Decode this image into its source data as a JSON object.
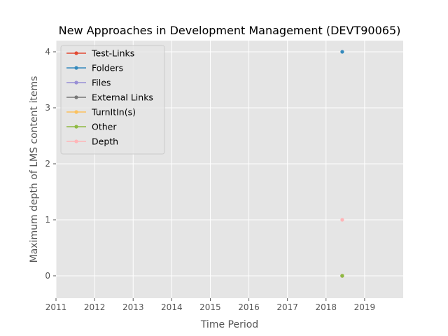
{
  "chart_data": {
    "type": "line",
    "title": "New Approaches in Development Management (DEVT90065)",
    "xlabel": "Time Period",
    "ylabel": "Maximum depth of LMS content items",
    "xlim": [
      2011,
      2020
    ],
    "ylim": [
      -0.4,
      4.2
    ],
    "xticks": [
      2011,
      2012,
      2013,
      2014,
      2015,
      2016,
      2017,
      2018,
      2019
    ],
    "yticks": [
      0,
      1,
      2,
      3,
      4
    ],
    "grid": true,
    "legend_position": "top-left",
    "series": [
      {
        "name": "Test-Links",
        "color": "#E24A33",
        "points": [
          [
            2018.42,
            0
          ]
        ]
      },
      {
        "name": "Folders",
        "color": "#348ABD",
        "points": [
          [
            2018.42,
            4
          ]
        ]
      },
      {
        "name": "Files",
        "color": "#988ED5",
        "points": [
          [
            2018.42,
            0
          ]
        ]
      },
      {
        "name": "External Links",
        "color": "#777777",
        "points": [
          [
            2018.42,
            0
          ]
        ]
      },
      {
        "name": "TurnItIn(s)",
        "color": "#FBC15E",
        "points": [
          [
            2018.42,
            0
          ]
        ]
      },
      {
        "name": "Other",
        "color": "#8EBA42",
        "points": [
          [
            2018.42,
            0
          ]
        ]
      },
      {
        "name": "Depth",
        "color": "#FFB5B8",
        "points": [
          [
            2018.42,
            1
          ]
        ]
      }
    ]
  }
}
